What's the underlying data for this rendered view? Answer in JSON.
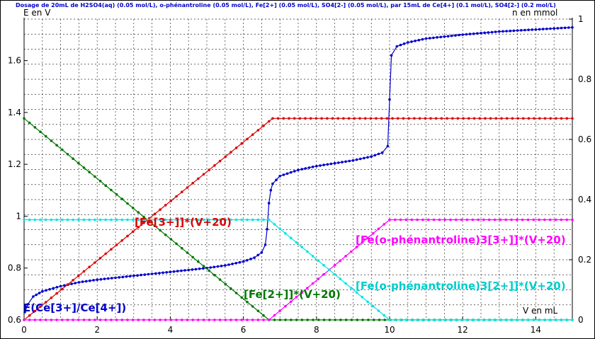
{
  "chart_data": {
    "type": "line",
    "title": "Dosage de 20mL de H2SO4(aq) (0.05 mol/L), o-phénantroline (0.05 mol/L), Fe[2+] (0.05 mol/L), SO4[2-] (0.05 mol/L),  par 15mL  de Ce[4+] (0.1 mol/L), SO4[2-] (0.2 mol/L)",
    "xlabel": "V en mL",
    "ylabel_left": "E en V",
    "ylabel_right": "n en mmol",
    "xlim": [
      0,
      15
    ],
    "ylim_left": [
      0.6,
      1.76
    ],
    "ylim_right": [
      0,
      1
    ],
    "x_ticks": [
      0,
      2,
      4,
      6,
      8,
      10,
      12,
      14
    ],
    "y_left_ticks": [
      0.6,
      0.8,
      1,
      1.2,
      1.4,
      1.6
    ],
    "y_right_ticks": [
      0,
      0.2,
      0.4,
      0.6,
      0.8,
      1
    ],
    "grid": true,
    "legend": "none",
    "series": [
      {
        "name": "E(Ce[3+]/Ce[4+])",
        "axis": "left",
        "color": "#0000cc",
        "x": [
          0.02,
          0.1,
          0.25,
          0.5,
          1,
          1.5,
          2,
          3,
          4,
          5,
          5.5,
          6,
          6.3,
          6.5,
          6.6,
          6.65,
          6.7,
          6.75,
          6.8,
          6.9,
          7,
          7.5,
          8,
          9,
          9.5,
          9.8,
          9.95,
          10.0,
          10.05,
          10.2,
          10.5,
          11,
          12,
          13,
          14,
          15
        ],
        "y": [
          0.63,
          0.66,
          0.69,
          0.71,
          0.73,
          0.745,
          0.755,
          0.77,
          0.785,
          0.8,
          0.81,
          0.825,
          0.84,
          0.86,
          0.89,
          0.95,
          1.05,
          1.1,
          1.125,
          1.14,
          1.155,
          1.178,
          1.193,
          1.215,
          1.23,
          1.245,
          1.27,
          1.45,
          1.62,
          1.655,
          1.67,
          1.685,
          1.7,
          1.712,
          1.72,
          1.728
        ]
      },
      {
        "name": "[Fe[3+]]*(V+20)",
        "axis": "right",
        "color": "#dd0000",
        "x": [
          0,
          6.7,
          6.8,
          15
        ],
        "y": [
          0.0,
          0.66,
          0.67,
          0.67
        ]
      },
      {
        "name": "[Fe[2+]]*(V+20)",
        "axis": "right",
        "color": "#007700",
        "x": [
          0,
          6.7,
          15
        ],
        "y": [
          0.67,
          0.0,
          0.0
        ]
      },
      {
        "name": "[Fe(o-phénantroline)3[3+]]*(V+20)",
        "axis": "right",
        "color": "#ff00ff",
        "x": [
          0,
          6.7,
          10,
          15
        ],
        "y": [
          0.0,
          0.0,
          0.333,
          0.333
        ]
      },
      {
        "name": "[Fe(o-phénantroline)3[2+]]*(V+20)",
        "axis": "right",
        "color": "#00e5e5",
        "x": [
          0,
          6.7,
          10,
          15
        ],
        "y": [
          0.333,
          0.333,
          0.0,
          0.0
        ]
      }
    ],
    "annotations": [
      {
        "text": "[Fe[3+]]*(V+20)",
        "color": "#dd0000"
      },
      {
        "text": "[Fe(o-phénantroline)3[3+]]*(V+20)",
        "color": "#ff00ff"
      },
      {
        "text": "[Fe[2+]]*(V+20)",
        "color": "#007700"
      },
      {
        "text": "[Fe(o-phénantroline)3[2+]]*(V+20)",
        "color": "#00cccc"
      },
      {
        "text": "E(Ce[3+]/Ce[4+])",
        "color": "#0000cc"
      }
    ]
  }
}
